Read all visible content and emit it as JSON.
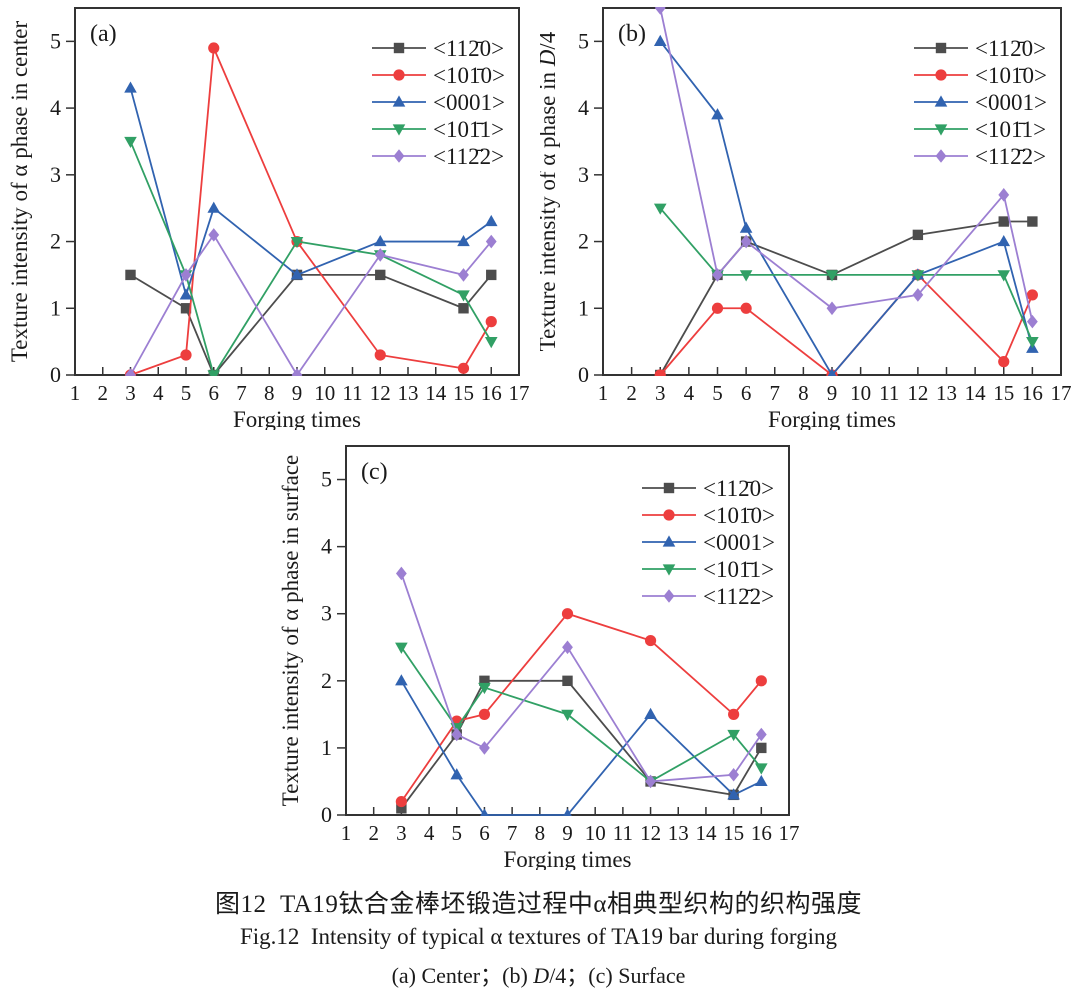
{
  "captions": {
    "zh": "图12  TA19钛合金棒坯锻造过程中α相典型织构的织构强度",
    "en": "Fig.12  Intensity of typical α textures of TA19 bar during forging",
    "sub_part1": "(a) Center；(b) ",
    "sub_d": "D",
    "sub_part2": "/4；(c) Surface"
  },
  "colors": {
    "frame": "#333333",
    "text": "#1a1a1a",
    "series_black": "#4d4d4d",
    "series_red": "#ed3e3e",
    "series_blue": "#3163b0",
    "series_green": "#31a065",
    "series_purple": "#9c7fd2"
  },
  "chart_data": [
    {
      "type": "line",
      "panel_label": "(a)",
      "xlabel": "Forging times",
      "ylabel": "Texture intensity of α phase in center",
      "ylabel_runs": [
        {
          "text": "Texture intensity of α phase in center",
          "italic": false
        }
      ],
      "x": [
        3,
        5,
        6,
        9,
        12,
        15,
        16
      ],
      "xlim": [
        1,
        17
      ],
      "ylim": [
        0,
        5.5
      ],
      "xticks": [
        1,
        2,
        3,
        4,
        5,
        6,
        7,
        8,
        9,
        10,
        11,
        12,
        13,
        14,
        15,
        16,
        17
      ],
      "yticks": [
        0,
        1,
        2,
        3,
        4,
        5
      ],
      "grid": false,
      "legend_position": "top-right",
      "series": [
        {
          "name": "<112̄0>",
          "marker": "square",
          "color": "#4d4d4d",
          "values": [
            1.5,
            1.0,
            0.0,
            1.5,
            1.5,
            1.0,
            1.5
          ]
        },
        {
          "name": "<101̄0>",
          "marker": "circle",
          "color": "#ed3e3e",
          "values": [
            0.0,
            0.3,
            4.9,
            2.0,
            0.3,
            0.1,
            0.8
          ]
        },
        {
          "name": "<0001>",
          "marker": "triangle",
          "color": "#3163b0",
          "values": [
            4.3,
            1.2,
            2.5,
            1.5,
            2.0,
            2.0,
            2.3
          ]
        },
        {
          "name": "<101̄1>",
          "marker": "triangle-down",
          "color": "#31a065",
          "values": [
            3.5,
            1.5,
            0.0,
            2.0,
            1.8,
            1.2,
            0.5
          ]
        },
        {
          "name": "<112̄2>",
          "marker": "diamond",
          "color": "#9c7fd2",
          "values": [
            0.0,
            1.5,
            2.1,
            0.0,
            1.8,
            1.5,
            2.0
          ]
        }
      ]
    },
    {
      "type": "line",
      "panel_label": "(b)",
      "xlabel": "Forging times",
      "ylabel": "Texture intensity of α phase in D/4",
      "ylabel_runs": [
        {
          "text": "Texture intensity of α phase in ",
          "italic": false
        },
        {
          "text": "D",
          "italic": true
        },
        {
          "text": "/4",
          "italic": false
        }
      ],
      "x": [
        3,
        5,
        6,
        9,
        12,
        15,
        16
      ],
      "xlim": [
        1,
        17
      ],
      "ylim": [
        0,
        5.5
      ],
      "xticks": [
        1,
        2,
        3,
        4,
        5,
        6,
        7,
        8,
        9,
        10,
        11,
        12,
        13,
        14,
        15,
        16,
        17
      ],
      "yticks": [
        0,
        1,
        2,
        3,
        4,
        5
      ],
      "grid": false,
      "legend_position": "top-right",
      "series": [
        {
          "name": "<112̄0>",
          "marker": "square",
          "color": "#4d4d4d",
          "values": [
            0.0,
            1.5,
            2.0,
            1.5,
            2.1,
            2.3,
            2.3
          ]
        },
        {
          "name": "<101̄0>",
          "marker": "circle",
          "color": "#ed3e3e",
          "values": [
            0.0,
            1.0,
            1.0,
            0.0,
            1.5,
            0.2,
            1.2
          ]
        },
        {
          "name": "<0001>",
          "marker": "triangle",
          "color": "#3163b0",
          "values": [
            5.0,
            3.9,
            2.2,
            0.0,
            1.5,
            2.0,
            0.4
          ]
        },
        {
          "name": "<101̄1>",
          "marker": "triangle-down",
          "color": "#31a065",
          "values": [
            2.5,
            1.5,
            1.5,
            1.5,
            1.5,
            1.5,
            0.5
          ]
        },
        {
          "name": "<112̄2>",
          "marker": "diamond",
          "color": "#9c7fd2",
          "values": [
            5.5,
            1.5,
            2.0,
            1.0,
            1.2,
            2.7,
            0.8
          ]
        }
      ]
    },
    {
      "type": "line",
      "panel_label": "(c)",
      "xlabel": "Forging times",
      "ylabel": "Texture intensity of α phase in surface",
      "ylabel_runs": [
        {
          "text": "Texture intensity of α phase in surface",
          "italic": false
        }
      ],
      "x": [
        3,
        5,
        6,
        9,
        12,
        15,
        16
      ],
      "xlim": [
        1,
        17
      ],
      "ylim": [
        0,
        5.5
      ],
      "xticks": [
        1,
        2,
        3,
        4,
        5,
        6,
        7,
        8,
        9,
        10,
        11,
        12,
        13,
        14,
        15,
        16,
        17
      ],
      "yticks": [
        0,
        1,
        2,
        3,
        4,
        5
      ],
      "grid": false,
      "legend_position": "top-right",
      "series": [
        {
          "name": "<112̄0>",
          "marker": "square",
          "color": "#4d4d4d",
          "values": [
            0.1,
            1.2,
            2.0,
            2.0,
            0.5,
            0.3,
            1.0
          ]
        },
        {
          "name": "<101̄0>",
          "marker": "circle",
          "color": "#ed3e3e",
          "values": [
            0.2,
            1.4,
            1.5,
            3.0,
            2.6,
            1.5,
            2.0
          ]
        },
        {
          "name": "<0001>",
          "marker": "triangle",
          "color": "#3163b0",
          "values": [
            2.0,
            0.6,
            0.0,
            0.0,
            1.5,
            0.3,
            0.5
          ]
        },
        {
          "name": "<101̄1>",
          "marker": "triangle-down",
          "color": "#31a065",
          "values": [
            2.5,
            1.3,
            1.9,
            1.5,
            0.5,
            1.2,
            0.7
          ]
        },
        {
          "name": "<112̄2>",
          "marker": "diamond",
          "color": "#9c7fd2",
          "values": [
            3.6,
            1.2,
            1.0,
            2.5,
            0.5,
            0.6,
            1.2
          ]
        }
      ]
    }
  ]
}
